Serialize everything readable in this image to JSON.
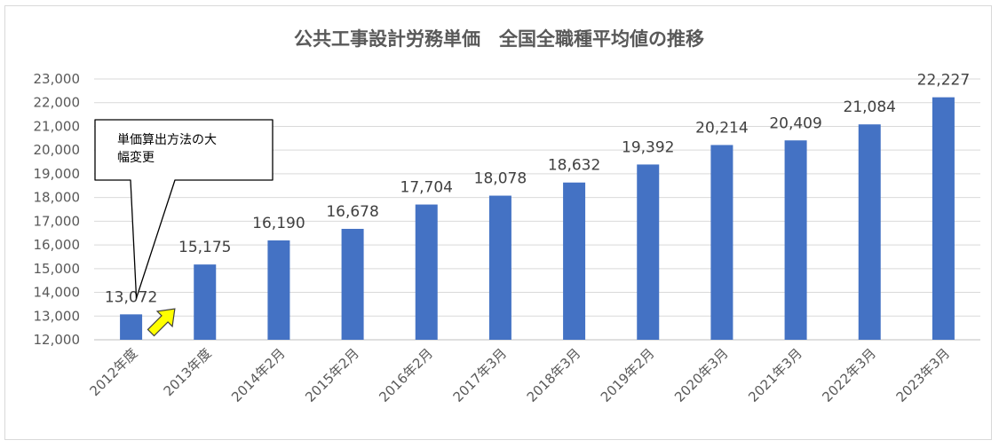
{
  "chart_data": {
    "type": "bar",
    "title": "公共工事設計労務単価　全国全職種平均値の推移",
    "xlabel": "",
    "ylabel": "",
    "categories": [
      "2012年度",
      "2013年度",
      "2014年2月",
      "2015年2月",
      "2016年2月",
      "2017年3月",
      "2018年3月",
      "2019年2月",
      "2020年3月",
      "2021年3月",
      "2022年3月",
      "2023年3月"
    ],
    "values": [
      13072,
      15175,
      16190,
      16678,
      17704,
      18078,
      18632,
      19392,
      20214,
      20409,
      21084,
      22227
    ],
    "data_labels": [
      "13,072",
      "15,175",
      "16,190",
      "16,678",
      "17,704",
      "18,078",
      "18,632",
      "19,392",
      "20,214",
      "20,409",
      "21,084",
      "22,227"
    ],
    "ylim": [
      12000,
      23000
    ],
    "yticks": [
      12000,
      13000,
      14000,
      15000,
      16000,
      17000,
      18000,
      19000,
      20000,
      21000,
      22000,
      23000
    ],
    "ytick_labels": [
      "12,000",
      "13,000",
      "14,000",
      "15,000",
      "16,000",
      "17,000",
      "18,000",
      "19,000",
      "20,000",
      "21,000",
      "22,000",
      "23,000"
    ],
    "grid": true,
    "legend": "none",
    "bar_color": "#4472C4",
    "annotations": [
      {
        "text_lines": [
          "単価算出方法の大",
          "幅変更"
        ],
        "points_to": "2012年度"
      }
    ],
    "arrow_color": "#FFFF00"
  }
}
